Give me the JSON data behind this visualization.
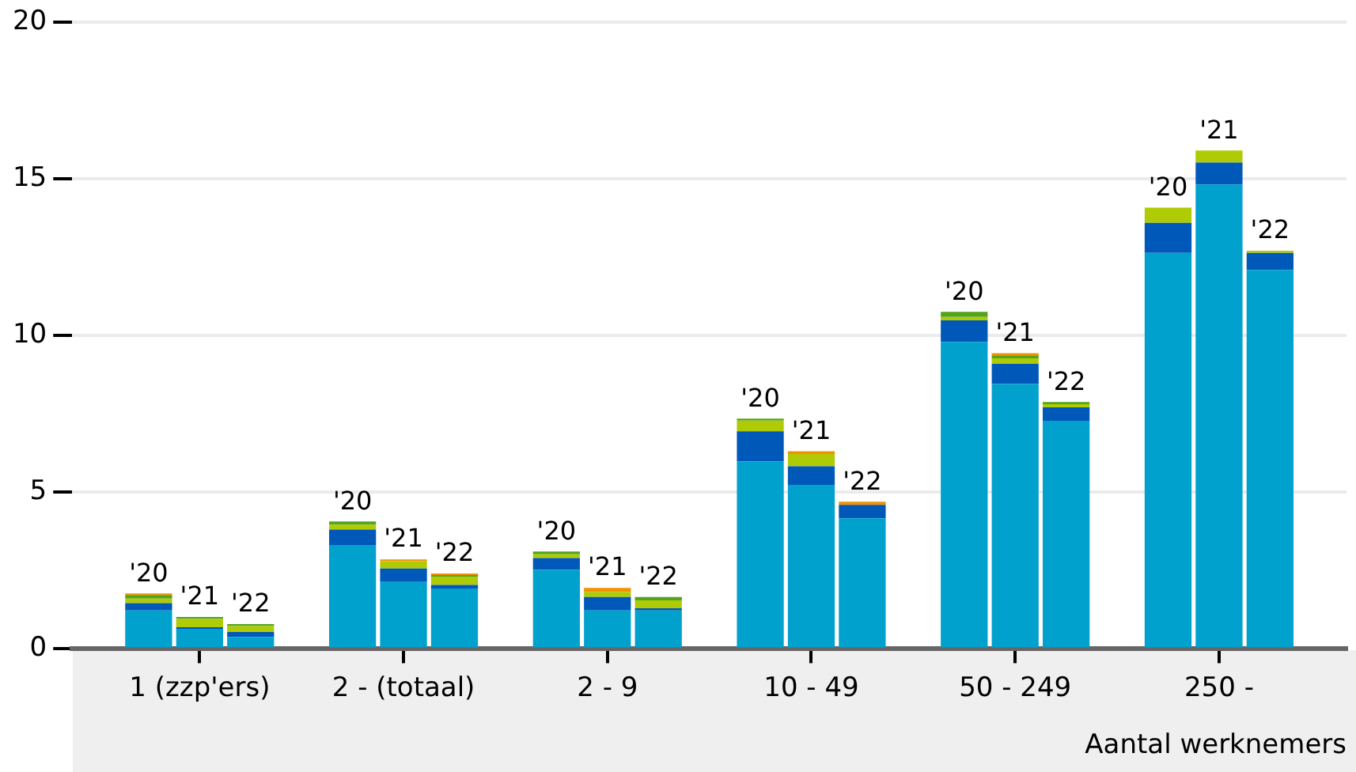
{
  "chart_data": {
    "type": "bar",
    "stacked": true,
    "categories": [
      null,
      null,
      "1 (zzp'ers)",
      null,
      null,
      null,
      "2 - (totaal)",
      null,
      null,
      null,
      "2 - 9",
      null,
      null,
      null,
      "10 - 49",
      null,
      null,
      null,
      "50 - 249",
      null,
      null,
      null,
      "250 -",
      null,
      null
    ],
    "xlabel": "Aantal werknemers",
    "ylim": [
      0,
      20
    ],
    "yticks": [
      0,
      5,
      10,
      15,
      20
    ],
    "grid": "y",
    "legend": false,
    "annotations": [
      "'20",
      "'21",
      "'22",
      "'20",
      "'21",
      "'22",
      "'20",
      "'21",
      "'22",
      "'20",
      "'21",
      "'22",
      "'20",
      "'21",
      "'22",
      "'20",
      "'21",
      "'22"
    ],
    "series": [
      {
        "color": "#00a1cd",
        "values": [
          null,
          1.23,
          0.64,
          0.38,
          null,
          3.32,
          2.14,
          1.93,
          null,
          2.52,
          1.23,
          1.23,
          null,
          5.99,
          5.24,
          4.17,
          null,
          9.8,
          8.46,
          7.28,
          null,
          12.64,
          14.83,
          12.1,
          null
        ]
      },
      {
        "color": "#0058b8",
        "values": [
          null,
          0.23,
          0.05,
          0.16,
          null,
          0.49,
          0.43,
          0.11,
          null,
          0.38,
          0.43,
          0.07,
          null,
          0.96,
          0.59,
          0.43,
          null,
          0.69,
          0.64,
          0.43,
          null,
          0.96,
          0.7,
          0.54,
          null
        ]
      },
      {
        "color": "#afcb05",
        "values": [
          null,
          0.15,
          0.27,
          0.19,
          null,
          0.16,
          0.23,
          0.27,
          null,
          0.12,
          0.16,
          0.25,
          null,
          0.34,
          0.39,
          null,
          null,
          0.11,
          0.18,
          0.1,
          null,
          0.49,
          0.38,
          0.07,
          null
        ]
      },
      {
        "color": "#53a31d",
        "values": [
          null,
          0.11,
          0.06,
          0.06,
          null,
          0.1,
          null,
          0.05,
          null,
          0.09,
          null,
          0.11,
          null,
          0.06,
          null,
          null,
          null,
          0.16,
          0.09,
          0.07,
          null,
          null,
          null,
          null,
          null
        ]
      },
      {
        "color": "#f39200",
        "values": [
          null,
          0.05,
          null,
          null,
          null,
          null,
          0.06,
          0.05,
          null,
          null,
          0.13,
          null,
          null,
          null,
          0.09,
          0.1,
          null,
          null,
          0.07,
          null,
          null,
          null,
          null,
          null,
          null
        ]
      }
    ]
  }
}
